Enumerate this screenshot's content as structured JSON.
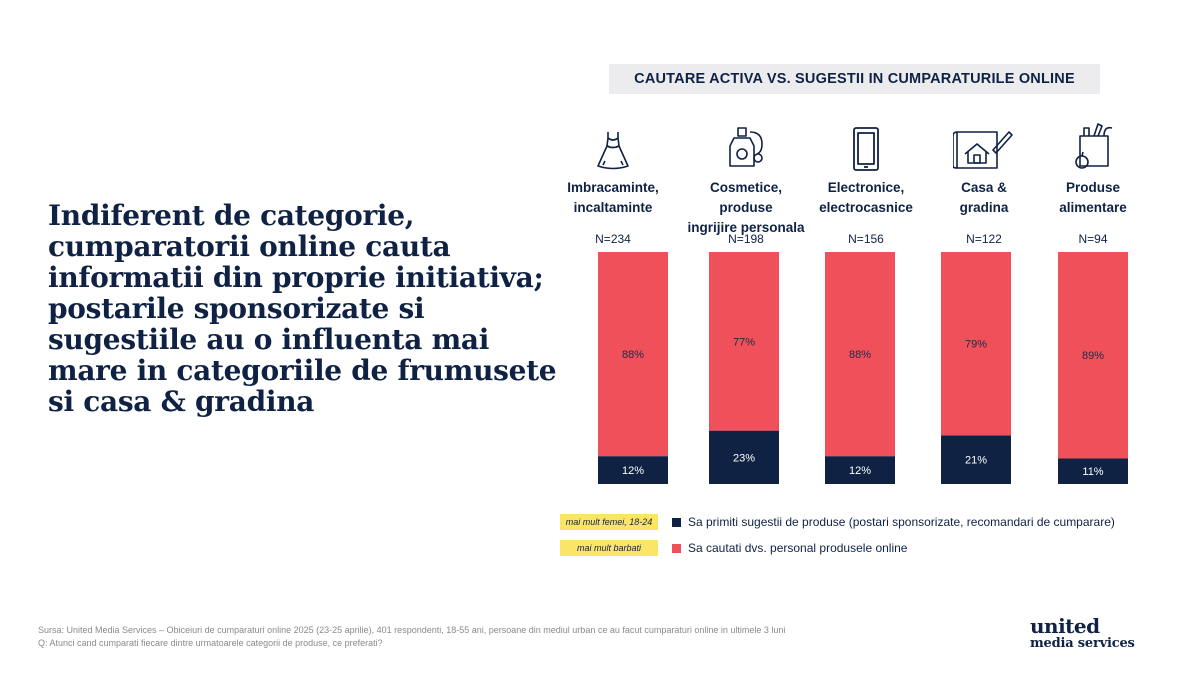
{
  "headline": "Indiferent de categorie, cumparatorii online cauta informatii din proprie initiativa; postarile sponsorizate si sugestiile au o influenta mai mare in categoriile de frumusete si casa & gradina",
  "chart_data": {
    "type": "bar",
    "stacked": true,
    "title": "CAUTARE ACTIVA VS. SUGESTII IN CUMPARATURILE ONLINE",
    "categories": [
      "Imbracaminte,\nincaltaminte",
      "Cosmetice, produse\ningrijire personala",
      "Electronice,\nelectrocasnice",
      "Casa &\ngradina",
      "Produse\nalimentare"
    ],
    "sample_sizes": [
      "N=234",
      "N=198",
      "N=156",
      "N=122",
      "N=94"
    ],
    "icons": [
      "dress-icon",
      "perfume-icon",
      "phone-icon",
      "house-plan-icon",
      "grocery-bag-icon"
    ],
    "ylim": [
      0,
      100
    ],
    "series": [
      {
        "name": "Sa primiti sugestii de produse (postari sponsorizate, recomandari de cumparare)",
        "tag": "mai mult femei, 18-24",
        "color": "#0f2244",
        "values": [
          12,
          23,
          12,
          21,
          11
        ],
        "labels": [
          "12%",
          "23%",
          "12%",
          "21%",
          "11%"
        ]
      },
      {
        "name": "Sa cautati dvs. personal produsele online",
        "tag": "mai mult barbati",
        "color": "#f0505a",
        "values": [
          88,
          77,
          88,
          79,
          89
        ],
        "labels": [
          "88%",
          "77%",
          "88%",
          "79%",
          "89%"
        ]
      }
    ]
  },
  "footer": {
    "source": "Sursa: United Media Services – Obiceiuri de cumparaturi online 2025 (23-25 aprilie), 401 respondenti, 18-55 ani, persoane din mediul urban ce au facut cumparaturi online in ultimele 3 luni",
    "question": "Q: Atunci cand cumparati fiecare dintre urmatoarele categorii de produse, ce preferati?"
  },
  "logo": {
    "line1": "united",
    "line2": "media services"
  }
}
